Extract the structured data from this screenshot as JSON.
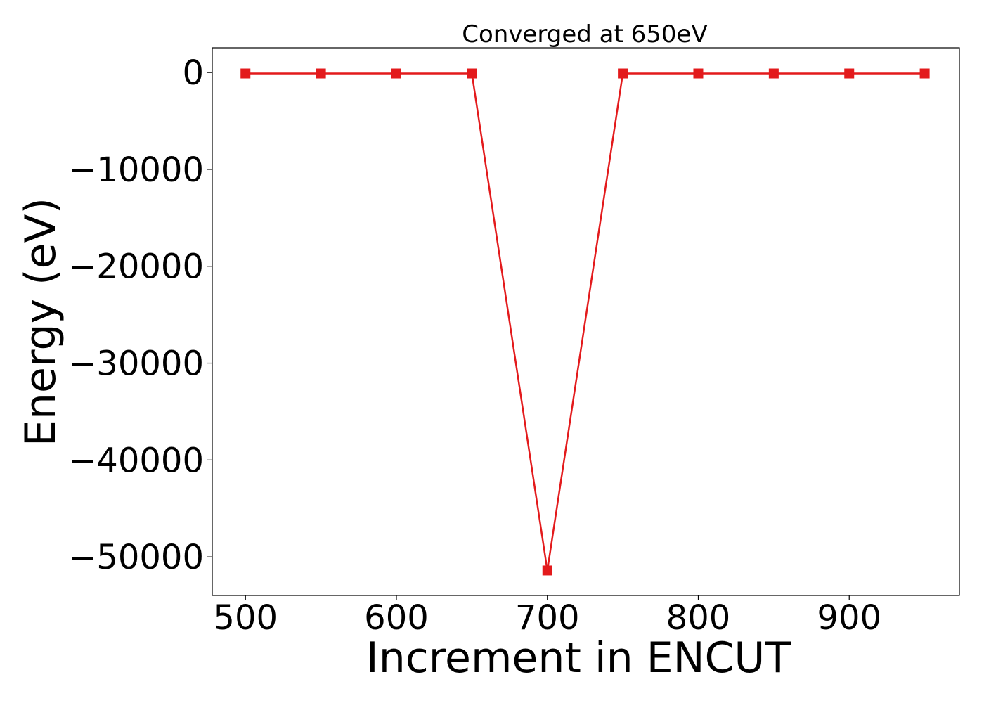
{
  "chart_data": {
    "type": "line",
    "title": "Converged at 650eV",
    "xlabel": "Increment in ENCUT",
    "ylabel": "Energy (eV)",
    "x": [
      500,
      550,
      600,
      650,
      700,
      750,
      800,
      850,
      900,
      950
    ],
    "series": [
      {
        "values": [
          -100,
          -100,
          -100,
          -100,
          -51400,
          -100,
          -100,
          -100,
          -100,
          -100
        ],
        "color": "#e31a1c",
        "marker": "square"
      }
    ],
    "xlim": [
      478,
      973
    ],
    "ylim": [
      -53980,
      2550
    ],
    "xticks": [
      500,
      600,
      700,
      800,
      900
    ],
    "xtick_labels": [
      "500",
      "600",
      "700",
      "800",
      "900"
    ],
    "yticks": [
      0,
      -10000,
      -20000,
      -30000,
      -40000,
      -50000
    ],
    "ytick_labels": [
      "0",
      "−10000",
      "−20000",
      "−30000",
      "−40000",
      "−50000"
    ],
    "grid": false,
    "legend": "none"
  }
}
